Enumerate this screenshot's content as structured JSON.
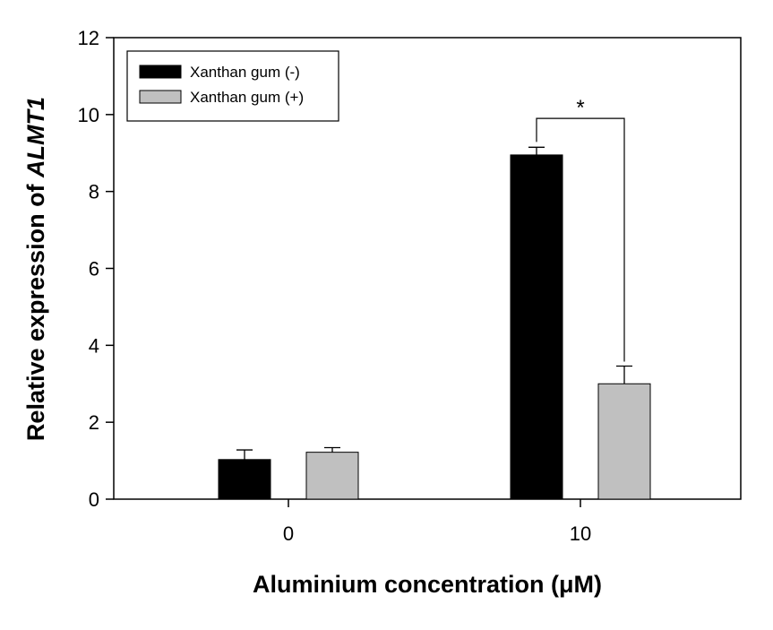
{
  "chart_data": {
    "type": "bar",
    "title": "",
    "xlabel": "Aluminium concentration (μM)",
    "ylabel_prefix": "Relative expression of ",
    "ylabel_gene": "ALMT1",
    "categories": [
      "0",
      "10"
    ],
    "series": [
      {
        "name": "Xanthan gum (-)",
        "color": "#000000",
        "values": [
          1.03,
          8.95
        ],
        "errors": [
          0.25,
          0.2
        ]
      },
      {
        "name": "Xanthan gum (+)",
        "color": "#c0c0c0",
        "values": [
          1.22,
          3.0
        ],
        "errors": [
          0.12,
          0.46
        ]
      }
    ],
    "ylim": [
      0,
      12
    ],
    "yticks": [
      "0",
      "2",
      "4",
      "6",
      "8",
      "10",
      "12"
    ],
    "legend_position": "top-left",
    "grid": false,
    "annotation": {
      "text": "*",
      "category": "10",
      "between": [
        "Xanthan gum (-)",
        "Xanthan gum (+)"
      ],
      "bracket_y": 9.9
    }
  }
}
